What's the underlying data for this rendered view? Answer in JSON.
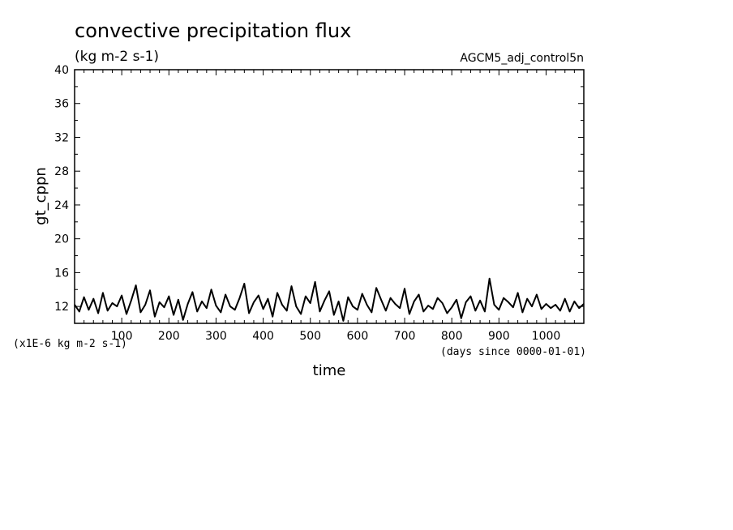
{
  "chart_data": {
    "type": "line",
    "title": "convective precipitation flux",
    "units": "(kg m-2 s-1)",
    "run_label": "AGCM5_adj_control5n",
    "xlabel": "time",
    "ylabel": "gt_cppn",
    "y_scale_note": "(x1E-6 kg m-2 s-1)",
    "x_unit_note": "(days since 0000-01-01)",
    "xlim": [
      0,
      1080
    ],
    "ylim": [
      10,
      40
    ],
    "x_ticks": [
      100,
      200,
      300,
      400,
      500,
      600,
      700,
      800,
      900,
      1000
    ],
    "y_ticks": [
      12,
      16,
      20,
      24,
      28,
      32,
      36,
      40
    ],
    "grid": false,
    "series": [
      {
        "color": "#000000",
        "x": [
          0,
          10,
          20,
          30,
          40,
          50,
          60,
          70,
          80,
          90,
          100,
          110,
          120,
          130,
          140,
          150,
          160,
          170,
          180,
          190,
          200,
          210,
          220,
          230,
          240,
          250,
          260,
          270,
          280,
          290,
          300,
          310,
          320,
          330,
          340,
          350,
          360,
          370,
          380,
          390,
          400,
          410,
          420,
          430,
          440,
          450,
          460,
          470,
          480,
          490,
          500,
          510,
          520,
          530,
          540,
          550,
          560,
          570,
          580,
          590,
          600,
          610,
          620,
          630,
          640,
          650,
          660,
          670,
          680,
          690,
          700,
          710,
          720,
          730,
          740,
          750,
          760,
          770,
          780,
          790,
          800,
          810,
          820,
          830,
          840,
          850,
          860,
          870,
          880,
          890,
          900,
          910,
          920,
          930,
          940,
          950,
          960,
          970,
          980,
          990,
          1000,
          1010,
          1020,
          1030,
          1040,
          1050,
          1060,
          1070,
          1080
        ],
        "y": [
          12.2,
          11.4,
          13.1,
          11.6,
          12.9,
          11.2,
          13.6,
          11.5,
          12.4,
          12.0,
          13.3,
          11.1,
          12.7,
          14.5,
          11.3,
          12.2,
          13.9,
          10.8,
          12.5,
          11.9,
          13.2,
          11.0,
          12.8,
          10.4,
          12.3,
          13.7,
          11.4,
          12.6,
          11.8,
          14.0,
          12.1,
          11.3,
          13.4,
          12.0,
          11.6,
          13.0,
          14.7,
          11.2,
          12.5,
          13.3,
          11.7,
          12.9,
          10.8,
          13.6,
          12.2,
          11.5,
          14.4,
          12.0,
          11.1,
          13.2,
          12.4,
          14.9,
          11.4,
          12.7,
          13.8,
          11.0,
          12.6,
          10.3,
          13.1,
          12.0,
          11.6,
          13.5,
          12.2,
          11.3,
          14.2,
          12.8,
          11.5,
          13.0,
          12.3,
          11.8,
          14.1,
          11.1,
          12.6,
          13.4,
          11.4,
          12.1,
          11.7,
          13.0,
          12.4,
          11.2,
          11.9,
          12.8,
          10.6,
          12.5,
          13.2,
          11.5,
          12.7,
          11.4,
          15.3,
          12.2,
          11.6,
          13.0,
          12.5,
          11.9,
          13.6,
          11.3,
          12.9,
          12.0,
          13.4,
          11.7,
          12.3,
          11.8,
          12.2,
          11.5,
          12.9,
          11.4,
          12.6,
          11.8,
          12.3
        ]
      }
    ]
  }
}
